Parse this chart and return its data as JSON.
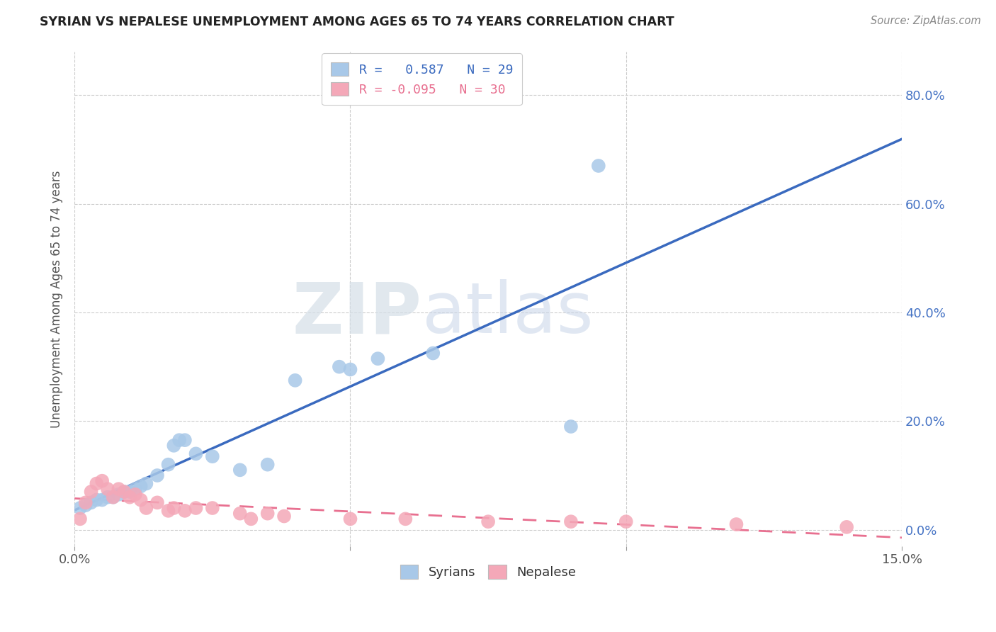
{
  "title": "SYRIAN VS NEPALESE UNEMPLOYMENT AMONG AGES 65 TO 74 YEARS CORRELATION CHART",
  "source": "Source: ZipAtlas.com",
  "ylabel": "Unemployment Among Ages 65 to 74 years",
  "xlim": [
    0.0,
    0.15
  ],
  "ylim": [
    -0.03,
    0.88
  ],
  "ytick_labels_right": [
    "0.0%",
    "20.0%",
    "40.0%",
    "60.0%",
    "80.0%"
  ],
  "ytick_vals": [
    0.0,
    0.2,
    0.4,
    0.6,
    0.8
  ],
  "xtick_vals": [
    0.0,
    0.05,
    0.1,
    0.15
  ],
  "xtick_labels": [
    "0.0%",
    "",
    "",
    "15.0%"
  ],
  "syrian_color": "#a8c8e8",
  "nepalese_color": "#f4a8b8",
  "syrian_line_color": "#3a6abf",
  "nepalese_line_color": "#e87090",
  "background_color": "#ffffff",
  "watermark_zip": "ZIP",
  "watermark_atlas": "atlas",
  "legend_R_syrian": "0.587",
  "legend_N_syrian": "29",
  "legend_R_nepalese": "-0.095",
  "legend_N_nepalese": "30",
  "syrian_x": [
    0.001,
    0.002,
    0.003,
    0.004,
    0.005,
    0.006,
    0.007,
    0.008,
    0.009,
    0.01,
    0.011,
    0.012,
    0.013,
    0.015,
    0.017,
    0.018,
    0.019,
    0.02,
    0.022,
    0.025,
    0.03,
    0.035,
    0.04,
    0.048,
    0.05,
    0.055,
    0.065,
    0.09,
    0.095
  ],
  "syrian_y": [
    0.04,
    0.045,
    0.05,
    0.055,
    0.055,
    0.06,
    0.06,
    0.065,
    0.07,
    0.07,
    0.075,
    0.08,
    0.085,
    0.1,
    0.12,
    0.155,
    0.165,
    0.165,
    0.14,
    0.135,
    0.11,
    0.12,
    0.275,
    0.3,
    0.295,
    0.315,
    0.325,
    0.19,
    0.67
  ],
  "nepalese_x": [
    0.001,
    0.002,
    0.003,
    0.004,
    0.005,
    0.006,
    0.007,
    0.008,
    0.009,
    0.01,
    0.011,
    0.012,
    0.013,
    0.015,
    0.017,
    0.018,
    0.02,
    0.022,
    0.025,
    0.03,
    0.032,
    0.035,
    0.038,
    0.05,
    0.06,
    0.075,
    0.09,
    0.1,
    0.12,
    0.14
  ],
  "nepalese_y": [
    0.02,
    0.05,
    0.07,
    0.085,
    0.09,
    0.075,
    0.06,
    0.075,
    0.07,
    0.06,
    0.065,
    0.055,
    0.04,
    0.05,
    0.035,
    0.04,
    0.035,
    0.04,
    0.04,
    0.03,
    0.02,
    0.03,
    0.025,
    0.02,
    0.02,
    0.015,
    0.015,
    0.015,
    0.01,
    0.005
  ]
}
